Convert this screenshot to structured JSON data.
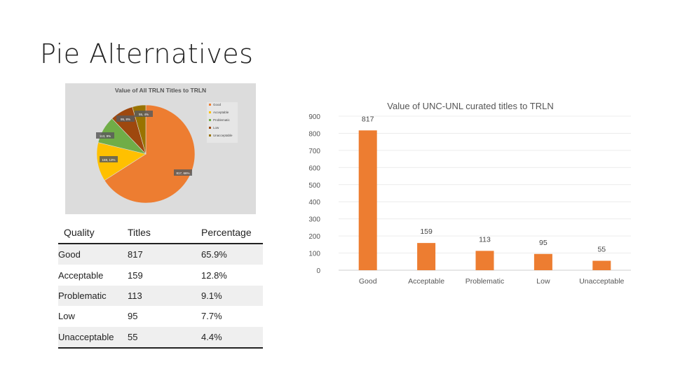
{
  "slide": {
    "title": "Pie Alternatives"
  },
  "pie_thumbnail": {
    "title": "Value of All TRLN Titles to TRLN",
    "legend": [
      "Good",
      "Acceptable",
      "Problematic",
      "Low",
      "Unacceptable"
    ],
    "slice_labels": [
      "817, 66%",
      "159, 13%",
      "113, 9%",
      "95, 8%",
      "55, 4%"
    ]
  },
  "table": {
    "headers": [
      "Quality",
      "Titles",
      "Percentage"
    ],
    "rows": [
      [
        "Good",
        "817",
        "65.9%"
      ],
      [
        "Acceptable",
        "159",
        "12.8%"
      ],
      [
        "Problematic",
        "113",
        "9.1%"
      ],
      [
        "Low",
        "95",
        "7.7%"
      ],
      [
        "Unacceptable",
        "55",
        "4.4%"
      ]
    ]
  },
  "chart_data": [
    {
      "type": "pie",
      "title": "Value of All TRLN Titles to TRLN",
      "categories": [
        "Good",
        "Acceptable",
        "Problematic",
        "Low",
        "Unacceptable"
      ],
      "values": [
        817,
        159,
        113,
        95,
        55
      ],
      "colors": [
        "#ed7d31",
        "#ffc000",
        "#70ad47",
        "#9e480e",
        "#997300"
      ],
      "legend": "right"
    },
    {
      "type": "bar",
      "title": "Value of UNC-UNL curated titles to TRLN",
      "categories": [
        "Good",
        "Acceptable",
        "Problematic",
        "Low",
        "Unacceptable"
      ],
      "values": [
        817,
        159,
        113,
        95,
        55
      ],
      "ylim": [
        0,
        900
      ],
      "yticks": [
        0,
        100,
        200,
        300,
        400,
        500,
        600,
        700,
        800,
        900
      ],
      "color": "#ed7d31",
      "grid": true,
      "data_labels": true
    }
  ]
}
